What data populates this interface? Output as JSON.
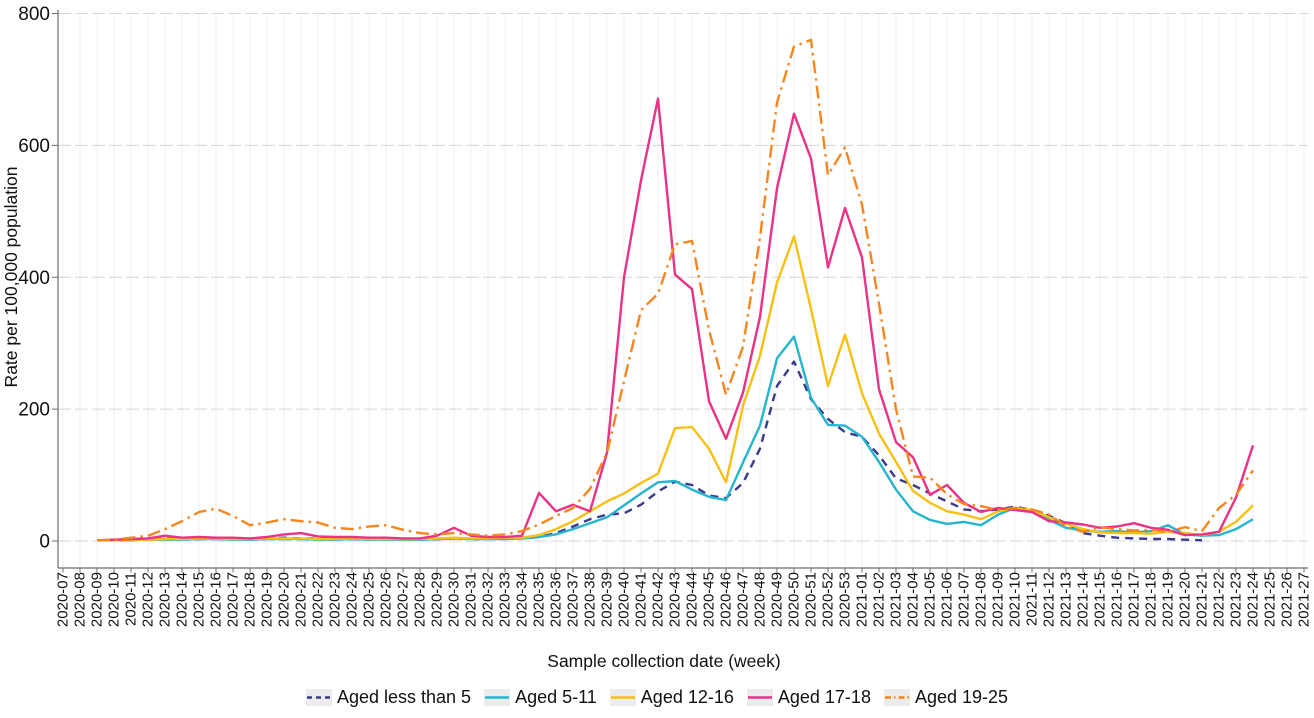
{
  "chart_data": {
    "type": "line",
    "title": "",
    "xlabel": "Sample collection date (week)",
    "ylabel": "Rate per 100,000 population",
    "ylim": [
      0,
      800
    ],
    "yticks": [
      0,
      200,
      400,
      600,
      800
    ],
    "grid": true,
    "legend_position": "bottom",
    "categories": [
      "2020-07",
      "2020-08",
      "2020-09",
      "2020-10",
      "2020-11",
      "2020-12",
      "2020-13",
      "2020-14",
      "2020-15",
      "2020-16",
      "2020-17",
      "2020-18",
      "2020-19",
      "2020-20",
      "2020-21",
      "2020-22",
      "2020-23",
      "2020-24",
      "2020-25",
      "2020-26",
      "2020-27",
      "2020-28",
      "2020-29",
      "2020-30",
      "2020-31",
      "2020-32",
      "2020-33",
      "2020-34",
      "2020-35",
      "2020-36",
      "2020-37",
      "2020-38",
      "2020-39",
      "2020-40",
      "2020-41",
      "2020-42",
      "2020-43",
      "2020-44",
      "2020-45",
      "2020-46",
      "2020-47",
      "2020-48",
      "2020-49",
      "2020-50",
      "2020-51",
      "2020-52",
      "2020-53",
      "2021-01",
      "2021-02",
      "2021-03",
      "2021-04",
      "2021-05",
      "2021-06",
      "2021-07",
      "2021-08",
      "2021-09",
      "2021-10",
      "2021-11",
      "2021-12",
      "2021-13",
      "2021-14",
      "2021-15",
      "2021-16",
      "2021-17",
      "2021-18",
      "2021-19",
      "2021-20",
      "2021-21",
      "2021-22",
      "2021-23",
      "2021-24",
      "2021-25",
      "2021-26",
      "2021-27"
    ],
    "series": [
      {
        "name": "Aged less than 5",
        "color": "#3b3a8d",
        "dash": "dashed",
        "values": [
          null,
          null,
          1,
          1,
          2,
          2,
          4,
          3,
          3,
          4,
          3,
          3,
          4,
          5,
          4,
          4,
          3,
          3,
          4,
          3,
          3,
          2,
          3,
          4,
          3,
          3,
          4,
          4,
          6,
          12,
          22,
          33,
          40,
          42,
          55,
          75,
          90,
          85,
          69,
          65,
          88,
          140,
          235,
          272,
          215,
          185,
          165,
          158,
          130,
          95,
          85,
          72,
          60,
          48,
          45,
          48,
          52,
          47,
          38,
          27,
          12,
          8,
          5,
          4,
          3,
          3,
          2,
          1,
          null,
          null,
          null,
          null,
          null,
          null
        ]
      },
      {
        "name": "Aged 5-11",
        "color": "#25b5cd",
        "dash": "solid",
        "values": [
          null,
          null,
          1,
          1,
          1,
          2,
          2,
          2,
          3,
          3,
          2,
          2,
          3,
          3,
          3,
          2,
          2,
          3,
          2,
          2,
          2,
          2,
          3,
          4,
          3,
          3,
          3,
          4,
          6,
          10,
          18,
          27,
          36,
          54,
          72,
          89,
          91,
          78,
          67,
          62,
          119,
          175,
          277,
          310,
          217,
          176,
          175,
          158,
          120,
          78,
          45,
          32,
          26,
          29,
          24,
          40,
          50,
          44,
          32,
          20,
          16,
          14,
          15,
          13,
          15,
          24,
          10,
          8,
          9,
          18,
          33,
          null,
          null,
          null
        ]
      },
      {
        "name": "Aged 12-16",
        "color": "#f9c013",
        "dash": "solid",
        "values": [
          null,
          null,
          1,
          1,
          2,
          2,
          3,
          3,
          4,
          4,
          3,
          3,
          4,
          4,
          4,
          3,
          3,
          4,
          3,
          3,
          3,
          3,
          4,
          5,
          4,
          4,
          5,
          5,
          9,
          18,
          30,
          45,
          60,
          72,
          88,
          102,
          171,
          173,
          140,
          89,
          205,
          281,
          392,
          462,
          352,
          235,
          313,
          224,
          163,
          120,
          76,
          58,
          45,
          40,
          33,
          45,
          50,
          47,
          36,
          26,
          18,
          13,
          12,
          12,
          11,
          14,
          12,
          9,
          14,
          29,
          54,
          null,
          null,
          null
        ]
      },
      {
        "name": "Aged 17-18",
        "color": "#ea3286",
        "dash": "solid",
        "values": [
          null,
          null,
          1,
          2,
          3,
          4,
          8,
          5,
          6,
          5,
          5,
          4,
          6,
          10,
          12,
          7,
          6,
          6,
          5,
          5,
          4,
          4,
          8,
          20,
          8,
          6,
          6,
          8,
          73,
          45,
          55,
          45,
          134,
          400,
          547,
          671,
          404,
          382,
          212,
          155,
          225,
          340,
          535,
          648,
          580,
          415,
          505,
          430,
          230,
          150,
          127,
          70,
          85,
          58,
          44,
          50,
          47,
          44,
          30,
          28,
          25,
          20,
          22,
          27,
          20,
          17,
          9,
          10,
          14,
          66,
          145,
          null,
          null,
          null
        ]
      },
      {
        "name": "Aged 19-25",
        "color": "#f8861f",
        "dash": "dashdot",
        "values": [
          null,
          null,
          1,
          2,
          5,
          8,
          18,
          30,
          44,
          49,
          38,
          24,
          28,
          33,
          30,
          28,
          20,
          18,
          22,
          24,
          17,
          12,
          10,
          12,
          10,
          8,
          10,
          15,
          25,
          38,
          50,
          79,
          134,
          242,
          350,
          375,
          450,
          455,
          320,
          222,
          295,
          460,
          665,
          750,
          760,
          555,
          597,
          510,
          360,
          200,
          98,
          96,
          71,
          56,
          53,
          47,
          50,
          48,
          40,
          22,
          14,
          21,
          18,
          16,
          17,
          14,
          21,
          15,
          50,
          70,
          107,
          null,
          null,
          null
        ]
      }
    ]
  }
}
